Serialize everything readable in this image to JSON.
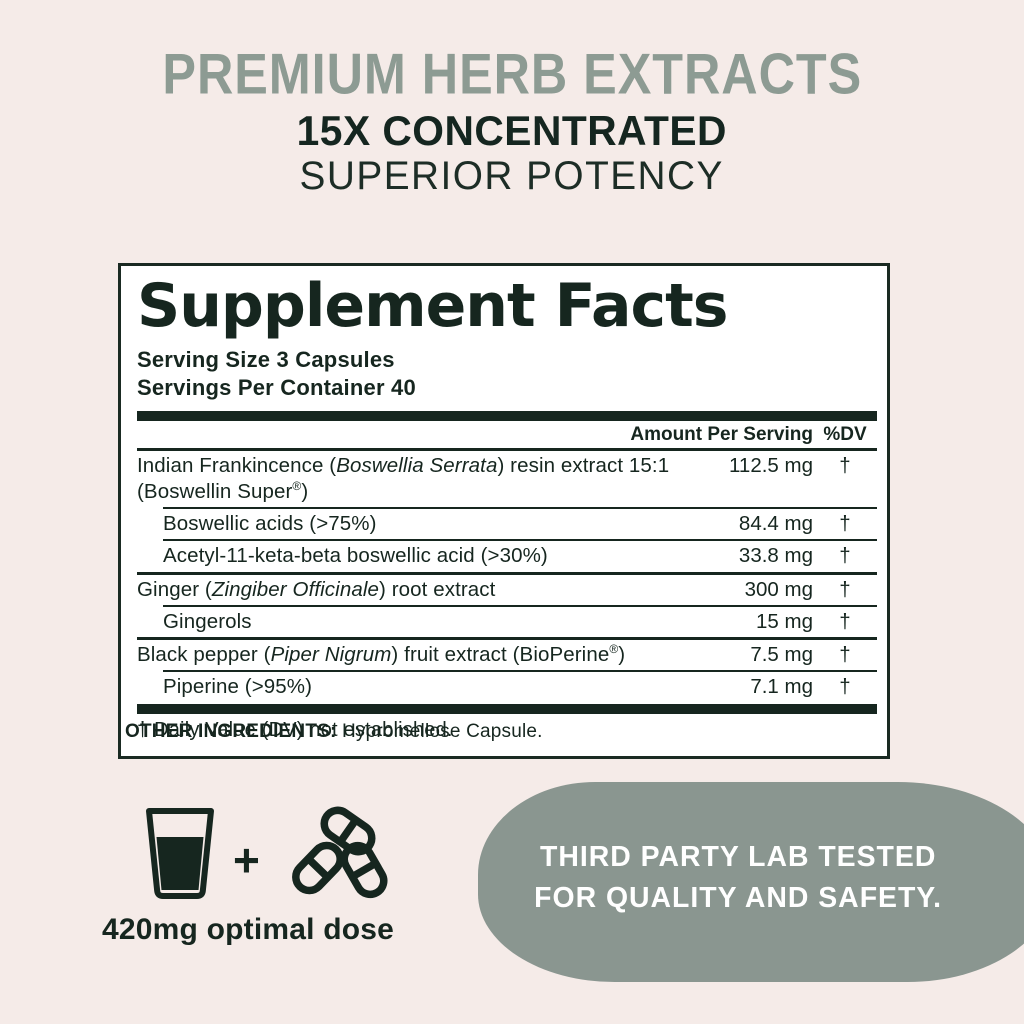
{
  "page": {
    "background_color": "#f5ebe8",
    "accent_dark": "#16261f",
    "accent_sage": "#8d9b93",
    "badge_color": "#8a9690"
  },
  "headline": {
    "line1": "PREMIUM HERB EXTRACTS",
    "line2": "15X CONCENTRATED",
    "line3": "SUPERIOR POTENCY"
  },
  "supplement_facts": {
    "title": "Supplement Facts",
    "serving_size": "Serving Size 3 Capsules",
    "servings_per_container": "Servings Per Container 40",
    "columns": {
      "amount": "Amount Per Serving",
      "dv": "%DV"
    },
    "rows": [
      {
        "parts": [
          {
            "text": "Indian Frankincence ("
          },
          {
            "text": "Boswellia Serrata",
            "italic": true
          },
          {
            "text": ") resin extract 15:1 (Boswellin Super"
          },
          {
            "text": "®",
            "sup": true
          },
          {
            "text": ")"
          }
        ],
        "amount": "112.5 mg",
        "dv": "†",
        "indent": false,
        "thick_top": false
      },
      {
        "parts": [
          {
            "text": "Boswellic acids (>75%)"
          }
        ],
        "amount": "84.4 mg",
        "dv": "†",
        "indent": true,
        "thick_top": false
      },
      {
        "parts": [
          {
            "text": "Acetyl-11-keta-beta boswellic acid (>30%)"
          }
        ],
        "amount": "33.8 mg",
        "dv": "†",
        "indent": true,
        "thick_top": false
      },
      {
        "parts": [
          {
            "text": "Ginger ("
          },
          {
            "text": "Zingiber Officinale",
            "italic": true
          },
          {
            "text": ") root extract"
          }
        ],
        "amount": "300 mg",
        "dv": "†",
        "indent": false,
        "thick_top": true
      },
      {
        "parts": [
          {
            "text": "Gingerols"
          }
        ],
        "amount": "15 mg",
        "dv": "†",
        "indent": true,
        "thick_top": false
      },
      {
        "parts": [
          {
            "text": "Black pepper ("
          },
          {
            "text": "Piper Nigrum",
            "italic": true
          },
          {
            "text": ") fruit extract (BioPerine"
          },
          {
            "text": "®",
            "sup": true
          },
          {
            "text": ")"
          }
        ],
        "amount": "7.5 mg",
        "dv": "†",
        "indent": false,
        "thick_top": true
      },
      {
        "parts": [
          {
            "text": "Piperine (>95%)"
          }
        ],
        "amount": "7.1 mg",
        "dv": "†",
        "indent": true,
        "thick_top": false
      }
    ],
    "footnote": "† Daily Value (DV) not established."
  },
  "other_ingredients": {
    "label": "OTHER INGREDIENTS:",
    "value": " Hypromellose Capsule."
  },
  "dose_graphic": {
    "plus": "+",
    "caption": "420mg optimal dose",
    "icons": [
      "glass-of-water-icon",
      "capsules-icon"
    ]
  },
  "badge": {
    "line1": "THIRD PARTY LAB TESTED",
    "line2": "FOR QUALITY AND SAFETY."
  }
}
